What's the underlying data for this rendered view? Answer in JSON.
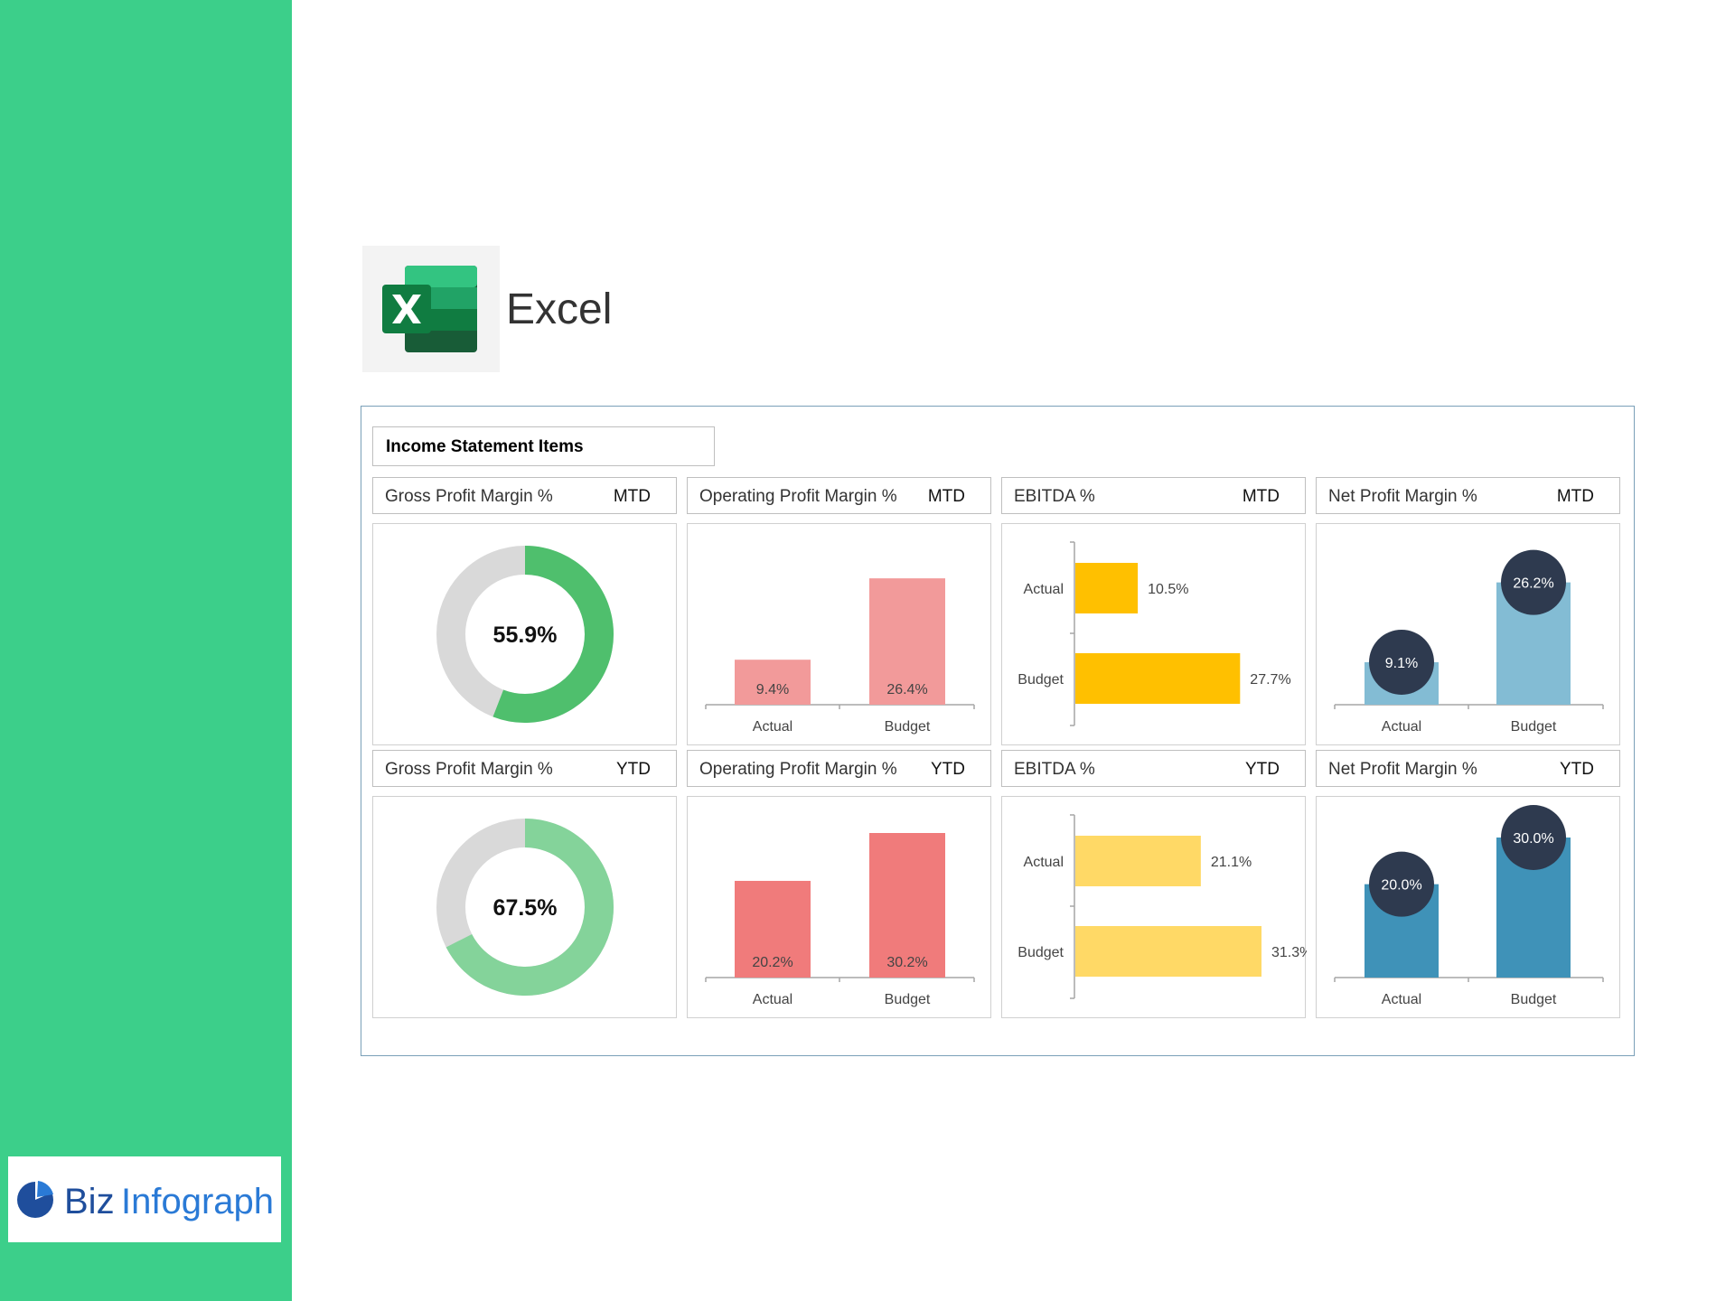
{
  "app": {
    "title": "Excel",
    "brand": {
      "part1": "Biz",
      "part2": "Infograph"
    }
  },
  "section_title": "Income Statement Items",
  "colors": {
    "sidebar": "#3ccf8a",
    "donut_track": "#d9d9d9",
    "gross_mtd": "#4fbf6d",
    "gross_ytd": "#84d39a",
    "op_mtd": "#f29a9a",
    "op_ytd": "#f07b7b",
    "ebitda_mtd": "#ffc000",
    "ebitda_ytd": "#ffd966",
    "net_mtd": "#83bcd4",
    "net_ytd": "#3f92b8",
    "bubble": "#2e3a4f"
  },
  "cards": [
    {
      "title": "Gross Profit Margin %",
      "period": "MTD"
    },
    {
      "title": "Operating Profit Margin %",
      "period": "MTD"
    },
    {
      "title": "EBITDA %",
      "period": "MTD"
    },
    {
      "title": "Net Profit Margin %",
      "period": "MTD"
    },
    {
      "title": "Gross Profit Margin %",
      "period": "YTD"
    },
    {
      "title": "Operating Profit Margin %",
      "period": "YTD"
    },
    {
      "title": "EBITDA %",
      "period": "YTD"
    },
    {
      "title": "Net Profit Margin %",
      "period": "YTD"
    }
  ],
  "chart_data": [
    {
      "type": "pie",
      "variant": "donut",
      "value": 55.9,
      "label": "55.9%",
      "color_key": "gross_mtd"
    },
    {
      "type": "bar",
      "orientation": "vertical",
      "categories": [
        "Actual",
        "Budget"
      ],
      "values": [
        9.4,
        26.4
      ],
      "labels": [
        "9.4%",
        "26.4%"
      ],
      "color_key": "op_mtd"
    },
    {
      "type": "bar",
      "orientation": "horizontal",
      "categories": [
        "Actual",
        "Budget"
      ],
      "values": [
        10.5,
        27.7
      ],
      "labels": [
        "10.5%",
        "27.7%"
      ],
      "color_key": "ebitda_mtd"
    },
    {
      "type": "bar",
      "orientation": "vertical",
      "style": "bubble",
      "categories": [
        "Actual",
        "Budget"
      ],
      "values": [
        9.1,
        26.2
      ],
      "labels": [
        "9.1%",
        "26.2%"
      ],
      "color_key": "net_mtd"
    },
    {
      "type": "pie",
      "variant": "donut",
      "value": 67.5,
      "label": "67.5%",
      "color_key": "gross_ytd"
    },
    {
      "type": "bar",
      "orientation": "vertical",
      "categories": [
        "Actual",
        "Budget"
      ],
      "values": [
        20.2,
        30.2
      ],
      "labels": [
        "20.2%",
        "30.2%"
      ],
      "color_key": "op_ytd"
    },
    {
      "type": "bar",
      "orientation": "horizontal",
      "categories": [
        "Actual",
        "Budget"
      ],
      "values": [
        21.1,
        31.3
      ],
      "labels": [
        "21.1%",
        "31.3%"
      ],
      "color_key": "ebitda_ytd"
    },
    {
      "type": "bar",
      "orientation": "vertical",
      "style": "bubble",
      "categories": [
        "Actual",
        "Budget"
      ],
      "values": [
        20.0,
        30.0
      ],
      "labels": [
        "20.0%",
        "30.0%"
      ],
      "color_key": "net_ytd"
    }
  ]
}
